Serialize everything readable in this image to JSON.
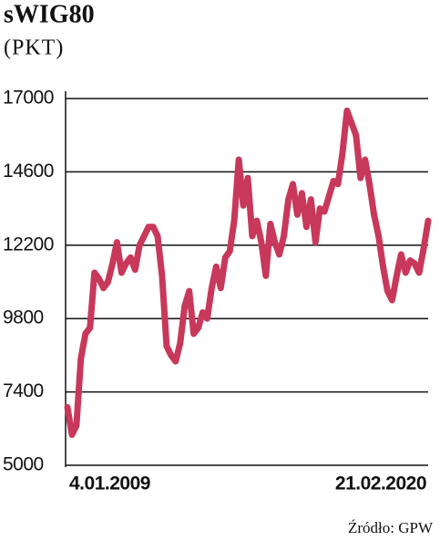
{
  "chart_data": {
    "type": "line",
    "title": "sWIG80",
    "subtitle": "(PKT)",
    "source": "Źródło: GPW",
    "categories": [
      "4.01.2009",
      null,
      null,
      null,
      null,
      null,
      null,
      null,
      null,
      null,
      null,
      null,
      null,
      null,
      null,
      null,
      null,
      null,
      null,
      null,
      null,
      null,
      null,
      null,
      null,
      null,
      null,
      null,
      null,
      null,
      null,
      null,
      null,
      null,
      null,
      null,
      null,
      null,
      null,
      null,
      null,
      null,
      null,
      null,
      null,
      null,
      null,
      null,
      null,
      null,
      null,
      null,
      null,
      null,
      null,
      null,
      null,
      null,
      null,
      null,
      null,
      null,
      null,
      null,
      null,
      null,
      null,
      null,
      null,
      null,
      null,
      null,
      null,
      null,
      null,
      null,
      null,
      null,
      null,
      null,
      "21.02.2020"
    ],
    "values": [
      6900,
      6000,
      6300,
      8500,
      9300,
      9500,
      11300,
      11100,
      10800,
      11000,
      11600,
      12300,
      11300,
      11600,
      11800,
      11400,
      12200,
      12500,
      12800,
      12800,
      12500,
      11200,
      8900,
      8600,
      8400,
      9000,
      10200,
      10700,
      9300,
      9500,
      10000,
      9800,
      10800,
      11500,
      10800,
      11800,
      12000,
      13000,
      15000,
      13500,
      14400,
      12500,
      13000,
      12300,
      11200,
      12900,
      12300,
      11900,
      12500,
      13700,
      14200,
      13200,
      13900,
      12800,
      13700,
      12300,
      13400,
      13300,
      13800,
      14300,
      14200,
      15200,
      16600,
      16200,
      15800,
      14400,
      15000,
      14200,
      13200,
      12500,
      11500,
      10700,
      10400,
      11200,
      11900,
      11300,
      11700,
      11600,
      11300,
      12100,
      13000
    ],
    "color": "#c8385a",
    "ylim": [
      5000,
      17000
    ],
    "yticks": [
      5000,
      7400,
      9800,
      12200,
      14600,
      17000
    ],
    "grid": true
  }
}
